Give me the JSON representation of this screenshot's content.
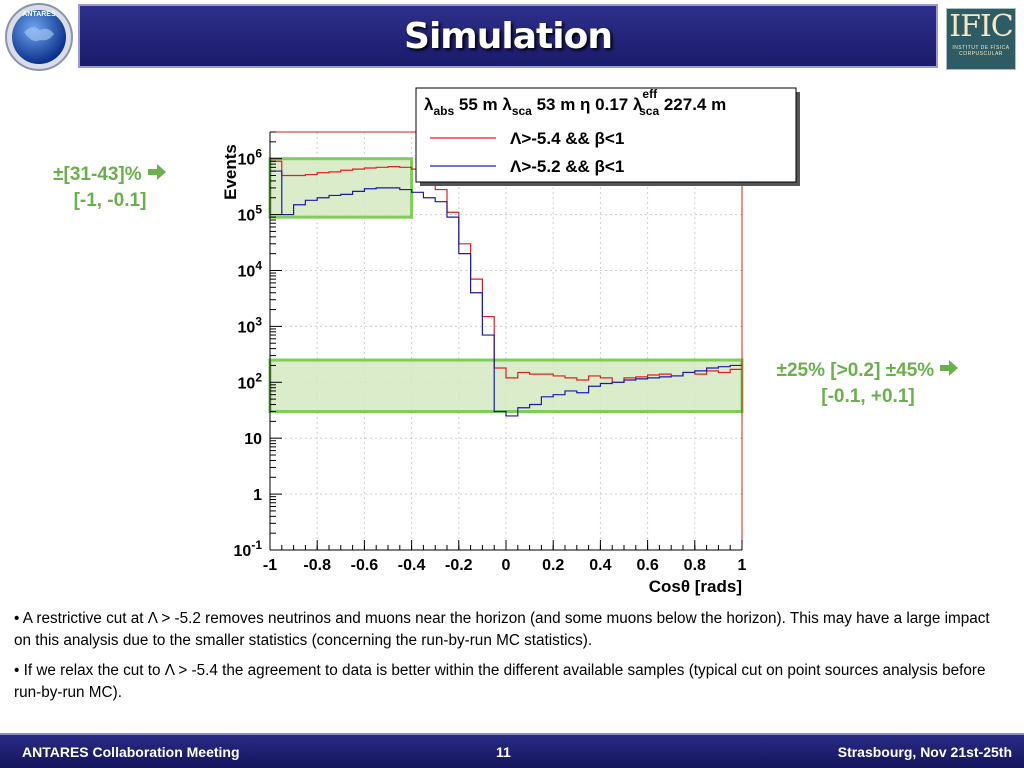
{
  "header": {
    "title": "Simulation",
    "logo_left_text": "ANTARES",
    "logo_right_main": "IFIC",
    "logo_right_sub": "INSTITUT DE FÍSICA CORPUSCULAR"
  },
  "annotations": {
    "left_line1": "±[31-43]%",
    "left_line2": "[-1, -0.1]",
    "right_line1": "±25% [>0.2] ±45%",
    "right_line2": "[-0.1, +0.1]",
    "arrow_icon": "arrow-right-icon"
  },
  "bullets": {
    "b1": "• A restrictive cut at Λ > -5.2 removes neutrinos and muons near the horizon (and some muons below the horizon). This may have a large impact on this analysis due to the smaller statistics (concerning the run-by-run MC statistics).",
    "b2": "• If we relax the cut to Λ > -5.4 the agreement to data is better within the different available samples (typical cut on point sources analysis before run-by-run MC)."
  },
  "footer": {
    "left": "ANTARES Collaboration Meeting",
    "center": "11",
    "right": "Strasbourg, Nov 21st-25th"
  },
  "colors": {
    "title_bg": "#1f2075",
    "annotation_green": "#6ab04c",
    "box_fill": "#d4e9bf",
    "series1": "#e02020",
    "series2": "#1a1ab0"
  },
  "chart_data": {
    "type": "line",
    "ylabel": "Events",
    "xlabel": "Cosθ [rads]",
    "yscale": "log",
    "xlim": [
      -1,
      1
    ],
    "ylim": [
      0.1,
      3000000
    ],
    "grid": true,
    "legend_position": "top-right",
    "x_ticks": [
      "-1",
      "-0.8",
      "-0.6",
      "-0.4",
      "-0.2",
      "0",
      "0.2",
      "0.4",
      "0.6",
      "0.8",
      "1"
    ],
    "y_ticks": [
      "10-1",
      "1",
      "10",
      "102",
      "103",
      "104",
      "105",
      "106"
    ],
    "legend_header": "λabs 55 m λsca 53 m η 0.17 λeffsca 227.4 m",
    "x": [
      -0.975,
      -0.925,
      -0.875,
      -0.825,
      -0.775,
      -0.725,
      -0.675,
      -0.625,
      -0.575,
      -0.525,
      -0.475,
      -0.425,
      -0.375,
      -0.325,
      -0.275,
      -0.225,
      -0.175,
      -0.125,
      -0.075,
      -0.025,
      0.025,
      0.075,
      0.125,
      0.175,
      0.225,
      0.275,
      0.325,
      0.375,
      0.425,
      0.475,
      0.525,
      0.575,
      0.625,
      0.675,
      0.725,
      0.775,
      0.825,
      0.875,
      0.925,
      0.975
    ],
    "series": [
      {
        "name": "Λ>-5.4 && β<1",
        "values": [
          900000,
          500000,
          500000,
          520000,
          560000,
          580000,
          620000,
          650000,
          680000,
          700000,
          720000,
          700000,
          650000,
          500000,
          280000,
          110000,
          30000,
          7000,
          1500,
          180,
          120,
          150,
          140,
          140,
          130,
          120,
          110,
          130,
          120,
          100,
          120,
          125,
          135,
          140,
          130,
          150,
          140,
          160,
          150,
          170
        ]
      },
      {
        "name": "Λ>-5.2 && β<1",
        "values": [
          600000,
          100000,
          150000,
          180000,
          200000,
          220000,
          230000,
          260000,
          290000,
          300000,
          300000,
          280000,
          250000,
          200000,
          170000,
          90000,
          20000,
          4000,
          700,
          30,
          25,
          35,
          40,
          55,
          60,
          70,
          65,
          85,
          95,
          100,
          110,
          115,
          120,
          125,
          130,
          150,
          160,
          180,
          190,
          200
        ]
      }
    ],
    "regions": [
      {
        "x": [
          -1,
          -0.4
        ],
        "y": [
          90000,
          1000000
        ]
      },
      {
        "x": [
          -1,
          1
        ],
        "y": [
          30,
          250
        ]
      }
    ]
  }
}
